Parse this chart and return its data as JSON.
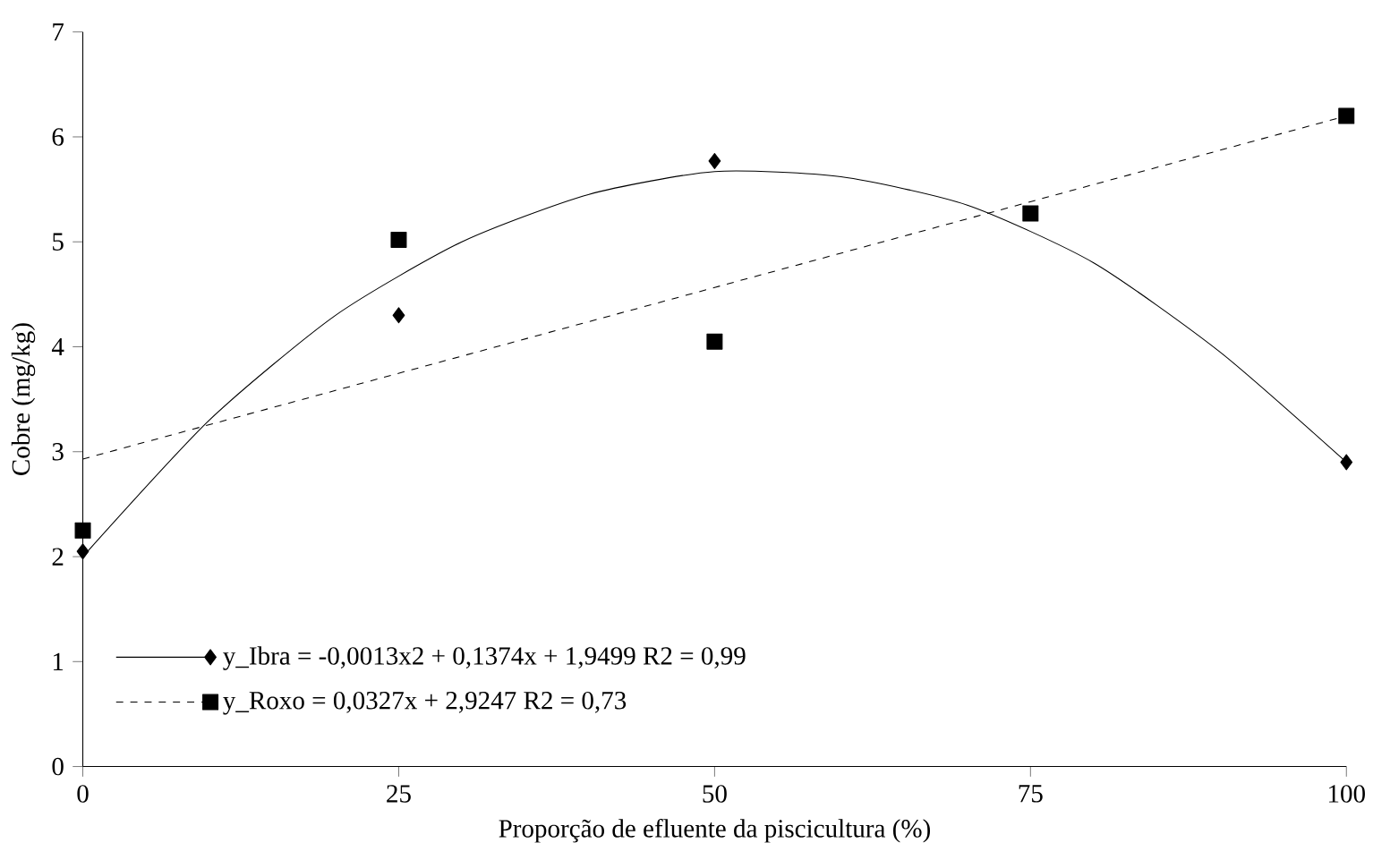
{
  "chart_data": {
    "type": "scatter",
    "xlabel": "Proporção de efluente da piscicultura (%)",
    "ylabel": "Cobre (mg/kg)",
    "xlim": [
      0,
      100
    ],
    "ylim": [
      0,
      7
    ],
    "xticks": [
      0,
      25,
      50,
      75,
      100
    ],
    "yticks": [
      0,
      1,
      2,
      3,
      4,
      5,
      6,
      7
    ],
    "legend": "bottom left",
    "grid": false,
    "series": [
      {
        "color": "#000000",
        "marker": "diamond",
        "x": [
          0,
          25,
          50,
          75,
          100
        ],
        "values": [
          2.05,
          4.3,
          5.77,
          null,
          2.9
        ]
      },
      {
        "color": "#000000",
        "marker": "square",
        "x": [
          0,
          25,
          50,
          75,
          100
        ],
        "values": [
          2.25,
          5.02,
          4.05,
          5.27,
          6.2
        ]
      },
      {
        "type": "line",
        "name": "y_Ibra = -0,0013x2 + 0,1374x + 1,9499 R2 = 0,99",
        "color": "#000000",
        "line_style": "solid",
        "x": [
          0,
          10,
          20,
          30,
          40,
          50,
          60,
          70,
          80,
          90,
          100
        ],
        "values": [
          2.0,
          3.3,
          4.3,
          5.0,
          5.45,
          5.67,
          5.62,
          5.35,
          4.8,
          3.95,
          2.9
        ]
      },
      {
        "type": "line",
        "name": "y_Roxo = 0,0327x + 2,9247 R2 = 0,73",
        "color": "#000000",
        "line_style": "dashed",
        "x": [
          0,
          100
        ],
        "values": [
          2.93,
          6.2
        ]
      }
    ]
  }
}
